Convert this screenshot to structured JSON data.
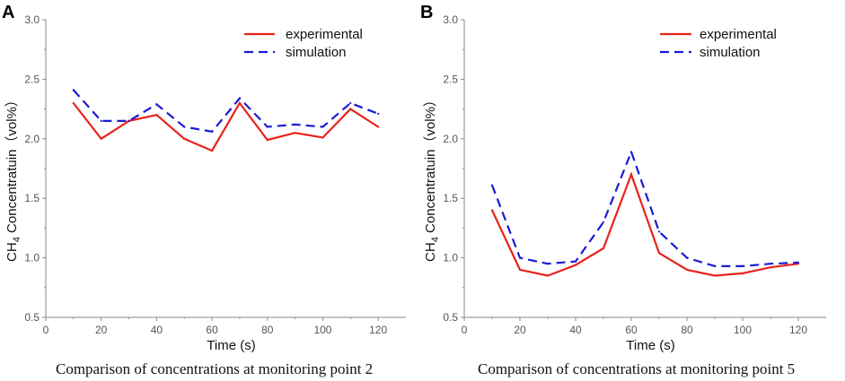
{
  "chart_data": [
    {
      "type": "line",
      "panel_label": "A",
      "xlabel": "Time (s)",
      "ylabel_prefix": "CH",
      "ylabel_sub": "4",
      "ylabel_suffix": " Concentratuin（vol%）",
      "xlim": [
        0,
        130
      ],
      "ylim": [
        0.5,
        3.0
      ],
      "x_ticks": [
        0,
        20,
        40,
        60,
        80,
        100,
        120
      ],
      "y_ticks": [
        "0.5",
        "1.0",
        "1.5",
        "2.0",
        "2.5",
        "3.0"
      ],
      "x": [
        10,
        20,
        30,
        40,
        50,
        60,
        70,
        80,
        90,
        100,
        110,
        120
      ],
      "series": [
        {
          "name": "experimental",
          "color": "#e8221b",
          "style": "solid",
          "values": [
            2.3,
            2.0,
            2.15,
            2.2,
            2.0,
            1.9,
            2.3,
            1.99,
            2.05,
            2.01,
            2.25,
            2.1
          ]
        },
        {
          "name": "simulation",
          "color": "#1b1bd6",
          "style": "dashed",
          "values": [
            2.41,
            2.15,
            2.15,
            2.29,
            2.1,
            2.06,
            2.34,
            2.1,
            2.12,
            2.1,
            2.3,
            2.21
          ]
        }
      ],
      "legend": "top-right",
      "caption": "Comparison of concentrations at monitoring point 2"
    },
    {
      "type": "line",
      "panel_label": "B",
      "xlabel": "Time (s)",
      "ylabel_prefix": "CH",
      "ylabel_sub": "4",
      "ylabel_suffix": " Concentratuin（vol%）",
      "xlim": [
        0,
        130
      ],
      "ylim": [
        0.5,
        3.0
      ],
      "x_ticks": [
        0,
        20,
        40,
        60,
        80,
        100,
        120
      ],
      "y_ticks": [
        "0.5",
        "1.0",
        "1.5",
        "2.0",
        "2.5",
        "3.0"
      ],
      "x": [
        10,
        20,
        30,
        40,
        50,
        60,
        70,
        80,
        90,
        100,
        110,
        120
      ],
      "series": [
        {
          "name": "experimental",
          "color": "#e8221b",
          "style": "solid",
          "values": [
            1.4,
            0.9,
            0.85,
            0.94,
            1.08,
            1.7,
            1.04,
            0.9,
            0.85,
            0.87,
            0.92,
            0.95
          ]
        },
        {
          "name": "simulation",
          "color": "#1b1bd6",
          "style": "dashed",
          "values": [
            1.61,
            1.0,
            0.95,
            0.97,
            1.3,
            1.89,
            1.22,
            1.0,
            0.93,
            0.93,
            0.95,
            0.96
          ]
        }
      ],
      "legend": "top-right",
      "caption": "Comparison of concentrations at monitoring point 5"
    }
  ]
}
